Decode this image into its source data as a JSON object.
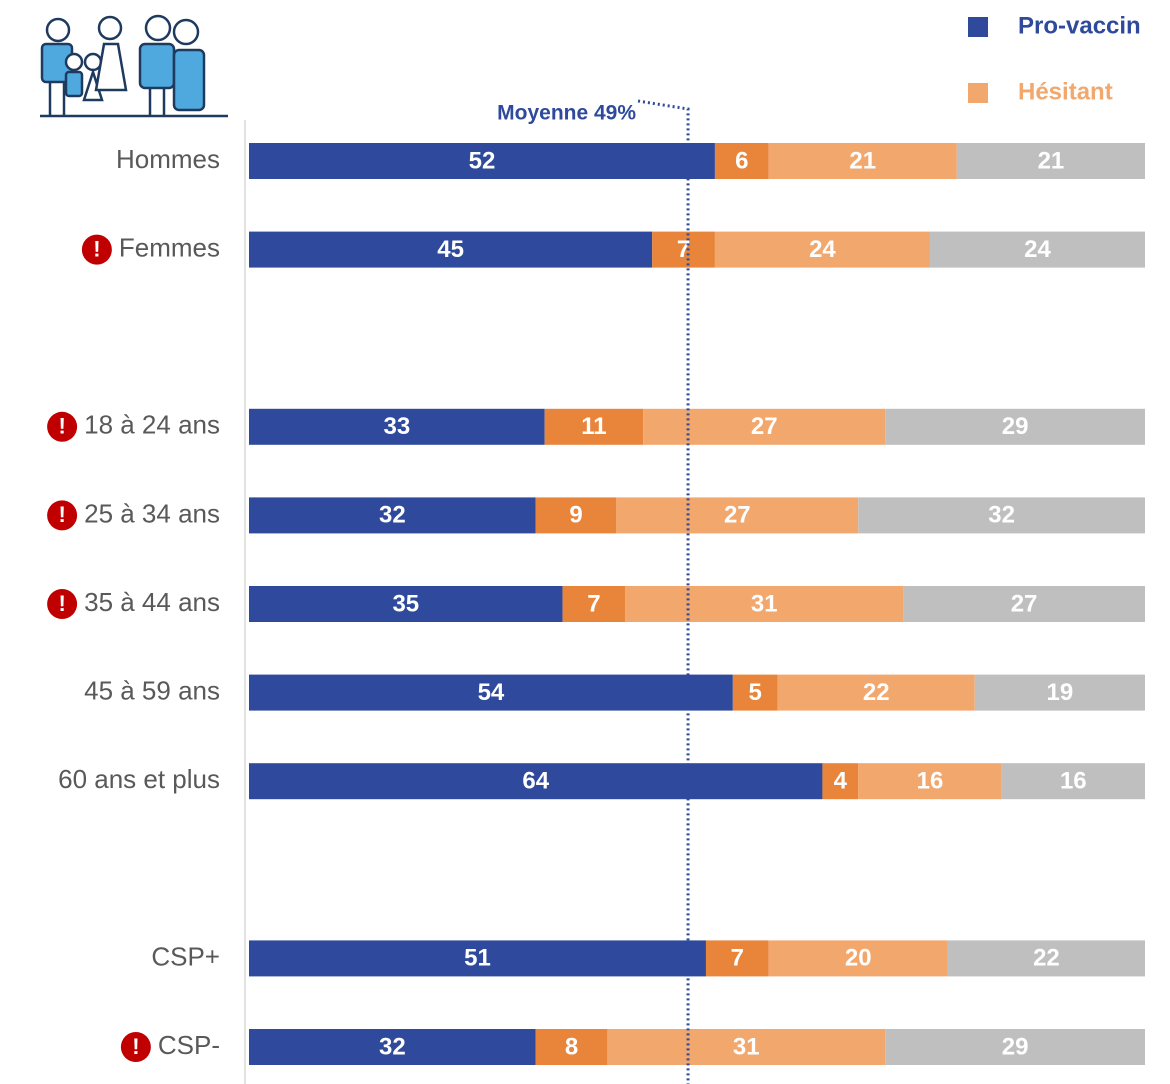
{
  "chart_data": {
    "type": "stacked-bar-horizontal",
    "categories": [
      "Hommes",
      "Femmes",
      null,
      "18 à 24 ans",
      "25 à 34 ans",
      "35 à 44 ans",
      "45 à 59 ans",
      "60 ans et plus",
      null,
      "CSP+",
      "CSP-"
    ],
    "series": [
      {
        "name": "Pro-vaccin",
        "color": "#2f4a9c",
        "values": [
          52,
          45,
          null,
          33,
          32,
          35,
          54,
          64,
          null,
          51,
          32
        ]
      },
      {
        "color": "#e8853b",
        "values": [
          6,
          7,
          null,
          11,
          9,
          7,
          5,
          4,
          null,
          7,
          8
        ]
      },
      {
        "name": "Hésitant",
        "color": "#f2a76d",
        "values": [
          21,
          24,
          null,
          27,
          27,
          31,
          22,
          16,
          null,
          20,
          31
        ]
      },
      {
        "color": "#bfbfbf",
        "values": [
          21,
          24,
          null,
          29,
          32,
          27,
          19,
          16,
          null,
          22,
          29
        ]
      }
    ],
    "xlim": [
      0,
      100
    ],
    "average": {
      "value": 49,
      "label": "Moyenne 49%"
    },
    "alert_symbol": "!",
    "alerts": [
      false,
      true,
      false,
      true,
      true,
      true,
      false,
      false,
      false,
      false,
      true
    ],
    "legend": "top-right"
  }
}
